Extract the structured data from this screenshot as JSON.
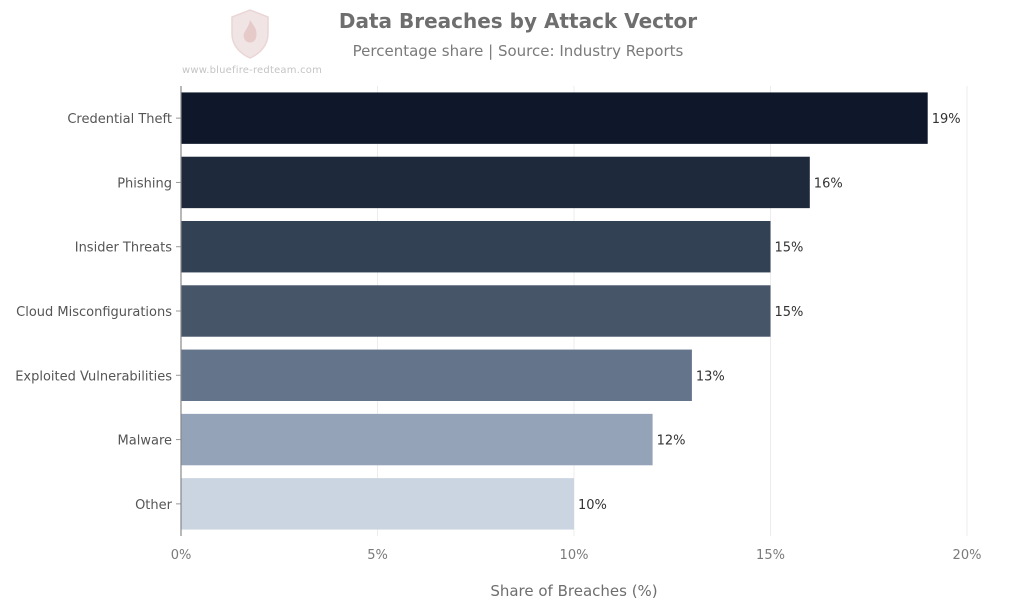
{
  "header": {
    "title": "Data Breaches by Attack Vector",
    "subtitle": "Percentage share | Source: Industry Reports",
    "watermark": "www.bluefire-redteam.com",
    "logo_icon": "shield-logo-icon"
  },
  "chart_data": {
    "type": "bar",
    "orientation": "horizontal",
    "title": "Data Breaches by Attack Vector",
    "subtitle": "Percentage share | Source: Industry Reports",
    "categories": [
      "Credential Theft",
      "Phishing",
      "Insider Threats",
      "Cloud Misconfigurations",
      "Exploited Vulnerabilities",
      "Malware",
      "Other"
    ],
    "values": [
      19,
      16,
      15,
      15,
      13,
      12,
      10
    ],
    "data_labels": [
      "19%",
      "16%",
      "15%",
      "15%",
      "13%",
      "12%",
      "10%"
    ],
    "colors": [
      "#0f172a",
      "#1e293b",
      "#334155",
      "#475569",
      "#64748b",
      "#94a3b8",
      "#cbd5e1"
    ],
    "xlabel": "Share of Breaches (%)",
    "ylabel": "",
    "xlim": [
      0,
      20
    ],
    "xticks": [
      0,
      5,
      10,
      15,
      20
    ],
    "xtick_labels": [
      "0%",
      "5%",
      "10%",
      "15%",
      "20%"
    ],
    "grid": "vertical",
    "legend": "none"
  }
}
